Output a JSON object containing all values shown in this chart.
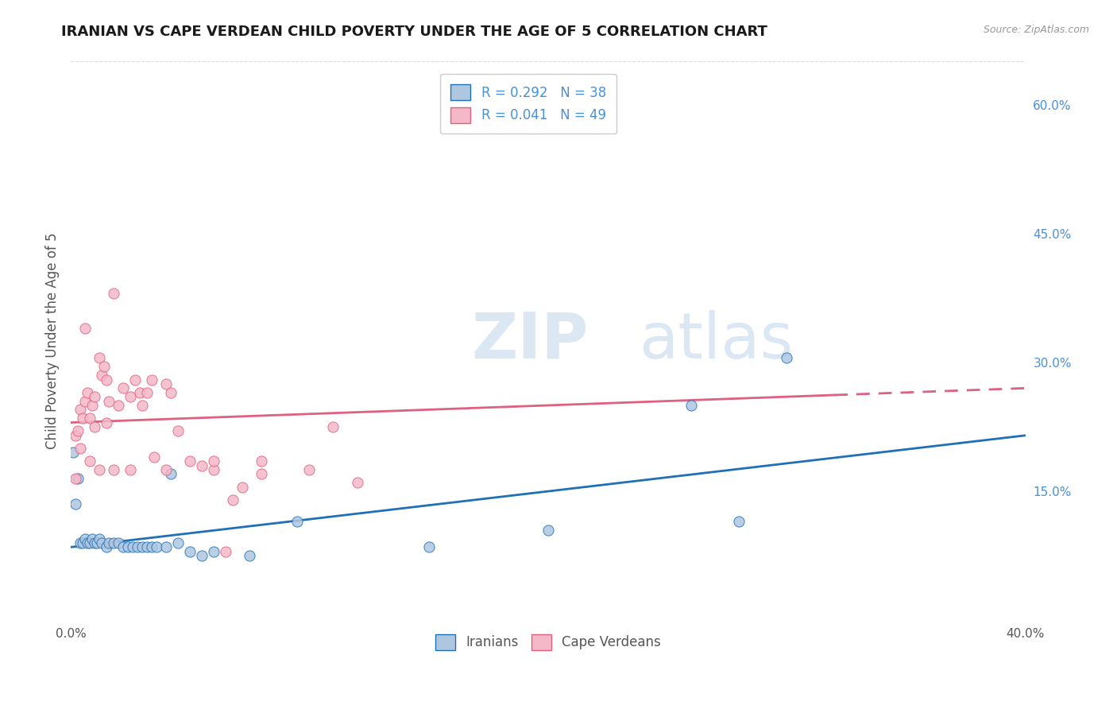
{
  "title": "IRANIAN VS CAPE VERDEAN CHILD POVERTY UNDER THE AGE OF 5 CORRELATION CHART",
  "source": "Source: ZipAtlas.com",
  "ylabel": "Child Poverty Under the Age of 5",
  "xlim": [
    0.0,
    0.4
  ],
  "ylim": [
    0.0,
    0.65
  ],
  "yticks_right": [
    0.0,
    0.15,
    0.3,
    0.45,
    0.6
  ],
  "ytick_right_labels": [
    "",
    "15.0%",
    "30.0%",
    "45.0%",
    "60.0%"
  ],
  "watermark_zip": "ZIP",
  "watermark_atlas": "atlas",
  "iranian_color": "#aec6e0",
  "cape_verdean_color": "#f4b8c8",
  "iranian_line_color": "#2070b8",
  "cape_verdean_line_color": "#e06080",
  "grid_color": "#dddddd",
  "title_color": "#1a1a1a",
  "axis_label_color": "#555555",
  "tick_color_right": "#4a90d9",
  "iranians_label": "Iranians",
  "cape_verdeans_label": "Cape Verdeans",
  "iranian_scatter_x": [
    0.001,
    0.002,
    0.003,
    0.004,
    0.005,
    0.006,
    0.007,
    0.008,
    0.009,
    0.01,
    0.011,
    0.012,
    0.013,
    0.015,
    0.016,
    0.018,
    0.02,
    0.022,
    0.024,
    0.026,
    0.028,
    0.03,
    0.032,
    0.034,
    0.036,
    0.04,
    0.042,
    0.045,
    0.05,
    0.055,
    0.06,
    0.075,
    0.095,
    0.15,
    0.2,
    0.26,
    0.28,
    0.3
  ],
  "iranian_scatter_y": [
    0.195,
    0.135,
    0.165,
    0.09,
    0.09,
    0.095,
    0.09,
    0.09,
    0.095,
    0.09,
    0.09,
    0.095,
    0.09,
    0.085,
    0.09,
    0.09,
    0.09,
    0.085,
    0.085,
    0.085,
    0.085,
    0.085,
    0.085,
    0.085,
    0.085,
    0.085,
    0.17,
    0.09,
    0.08,
    0.075,
    0.08,
    0.075,
    0.115,
    0.085,
    0.105,
    0.25,
    0.115,
    0.305
  ],
  "cape_verdean_scatter_x": [
    0.002,
    0.003,
    0.004,
    0.005,
    0.006,
    0.007,
    0.008,
    0.009,
    0.01,
    0.012,
    0.013,
    0.014,
    0.015,
    0.016,
    0.018,
    0.02,
    0.022,
    0.025,
    0.027,
    0.029,
    0.03,
    0.032,
    0.034,
    0.04,
    0.042,
    0.045,
    0.05,
    0.055,
    0.06,
    0.065,
    0.068,
    0.072,
    0.08,
    0.1,
    0.11,
    0.002,
    0.004,
    0.006,
    0.008,
    0.01,
    0.012,
    0.015,
    0.018,
    0.025,
    0.035,
    0.04,
    0.06,
    0.08,
    0.12
  ],
  "cape_verdean_scatter_y": [
    0.215,
    0.22,
    0.245,
    0.235,
    0.255,
    0.265,
    0.235,
    0.25,
    0.225,
    0.305,
    0.285,
    0.295,
    0.23,
    0.255,
    0.38,
    0.25,
    0.27,
    0.26,
    0.28,
    0.265,
    0.25,
    0.265,
    0.28,
    0.275,
    0.265,
    0.22,
    0.185,
    0.18,
    0.175,
    0.08,
    0.14,
    0.155,
    0.17,
    0.175,
    0.225,
    0.165,
    0.2,
    0.34,
    0.185,
    0.26,
    0.175,
    0.28,
    0.175,
    0.175,
    0.19,
    0.175,
    0.185,
    0.185,
    0.16
  ],
  "iran_line_x0": 0.0,
  "iran_line_y0": 0.085,
  "iran_line_x1": 0.4,
  "iran_line_y1": 0.215,
  "cape_line_x0": 0.0,
  "cape_line_y0": 0.23,
  "cape_line_x1": 0.4,
  "cape_line_y1": 0.27
}
